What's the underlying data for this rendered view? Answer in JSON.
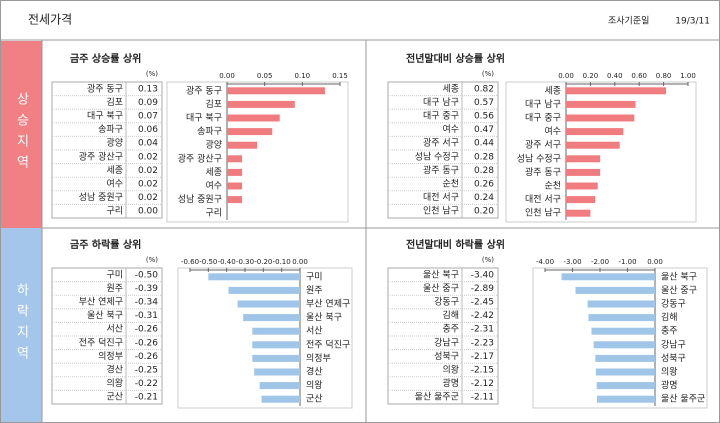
{
  "header": {
    "title": "전세가격",
    "date_label": "조사기준일",
    "date": "19/3/11"
  },
  "sections": [
    "상승지역",
    "하락지역"
  ],
  "chart_data": [
    {
      "type": "bar",
      "title": "금주 상승률 상위",
      "unit": "(%)",
      "color": "#f07c80",
      "categories": [
        "광주 동구",
        "김포",
        "대구 북구",
        "송파구",
        "광양",
        "광주 광산구",
        "세종",
        "여수",
        "성남 중원구",
        "구리"
      ],
      "values": [
        0.13,
        0.09,
        0.07,
        0.06,
        0.04,
        0.02,
        0.02,
        0.02,
        0.02,
        0.0
      ],
      "value_labels": [
        "0.13",
        "0.09",
        "0.07",
        "0.06",
        "0.04",
        "0.02",
        "0.02",
        "0.02",
        "0.02",
        "0.00"
      ],
      "xlim": [
        0,
        0.15
      ],
      "xticks": [
        {
          "value": 0,
          "label": "0.00"
        },
        0.05,
        {
          "value": 0.1,
          "label": "0.10"
        },
        0.15
      ]
    },
    {
      "type": "bar",
      "title": "전년말대비 상승률 상위",
      "unit": "(%)",
      "color": "#f07c80",
      "categories": [
        "세종",
        "대구 남구",
        "대구 중구",
        "여수",
        "광주 서구",
        "성남 수정구",
        "광주 동구",
        "순천",
        "대전 서구",
        "인천 남구"
      ],
      "values": [
        0.82,
        0.57,
        0.56,
        0.47,
        0.44,
        0.28,
        0.28,
        0.26,
        0.24,
        0.2
      ],
      "value_labels": [
        "0.82",
        "0.57",
        "0.56",
        "0.47",
        "0.44",
        "0.28",
        "0.28",
        "0.26",
        "0.24",
        "0.20"
      ],
      "xlim": [
        0,
        1
      ],
      "xticks": [
        {
          "value": 0,
          "label": "0.00"
        },
        {
          "value": 0.2,
          "label": "0.20"
        },
        {
          "value": 0.4,
          "label": "0.40"
        },
        {
          "value": 0.6,
          "label": "0.60"
        },
        {
          "value": 0.8,
          "label": "0.80"
        },
        {
          "value": 1,
          "label": "1.00"
        }
      ]
    },
    {
      "type": "bar",
      "title": "금주 하락률 상위",
      "unit": "(%)",
      "color": "#9fc5e8",
      "categories": [
        "구미",
        "원주",
        "부산 연제구",
        "울산 북구",
        "서산",
        "전주 덕진구",
        "의정부",
        "경산",
        "의왕",
        "군산"
      ],
      "values": [
        -0.5,
        -0.39,
        -0.34,
        -0.31,
        -0.26,
        -0.26,
        -0.26,
        -0.25,
        -0.22,
        -0.21
      ],
      "value_labels": [
        "-0.50",
        "-0.39",
        "-0.34",
        "-0.31",
        "-0.26",
        "-0.26",
        "-0.26",
        "-0.25",
        "-0.22",
        "-0.21"
      ],
      "xlim": [
        -0.6,
        0
      ],
      "xticks": [
        {
          "value": -0.6,
          "label": "-0.60"
        },
        {
          "value": -0.5,
          "label": "-0.50"
        },
        {
          "value": -0.4,
          "label": "-0.40"
        },
        {
          "value": -0.3,
          "label": "-0.30"
        },
        {
          "value": -0.2,
          "label": "-0.20"
        },
        {
          "value": -0.1,
          "label": "-0.10"
        },
        {
          "value": 0,
          "label": "0.00"
        }
      ]
    },
    {
      "type": "bar",
      "title": "전년말대비 하락률 상위",
      "unit": "(%)",
      "color": "#9fc5e8",
      "categories": [
        "울산 북구",
        "울산 중구",
        "강동구",
        "김해",
        "충주",
        "강남구",
        "성북구",
        "의왕",
        "광명",
        "울산 울주군"
      ],
      "values": [
        -3.4,
        -2.89,
        -2.45,
        -2.42,
        -2.31,
        -2.23,
        -2.17,
        -2.15,
        -2.12,
        -2.11
      ],
      "value_labels": [
        "-3.40",
        "-2.89",
        "-2.45",
        "-2.42",
        "-2.31",
        "-2.23",
        "-2.17",
        "-2.15",
        "-2.12",
        "-2.11"
      ],
      "xlim": [
        -4,
        0
      ],
      "xticks": [
        {
          "value": -4,
          "label": "-4.00"
        },
        {
          "value": -3,
          "label": "-3.00"
        },
        {
          "value": -2,
          "label": "-2.00"
        },
        {
          "value": -1,
          "label": "-1.00"
        },
        {
          "value": 0,
          "label": "0.00"
        }
      ]
    }
  ]
}
